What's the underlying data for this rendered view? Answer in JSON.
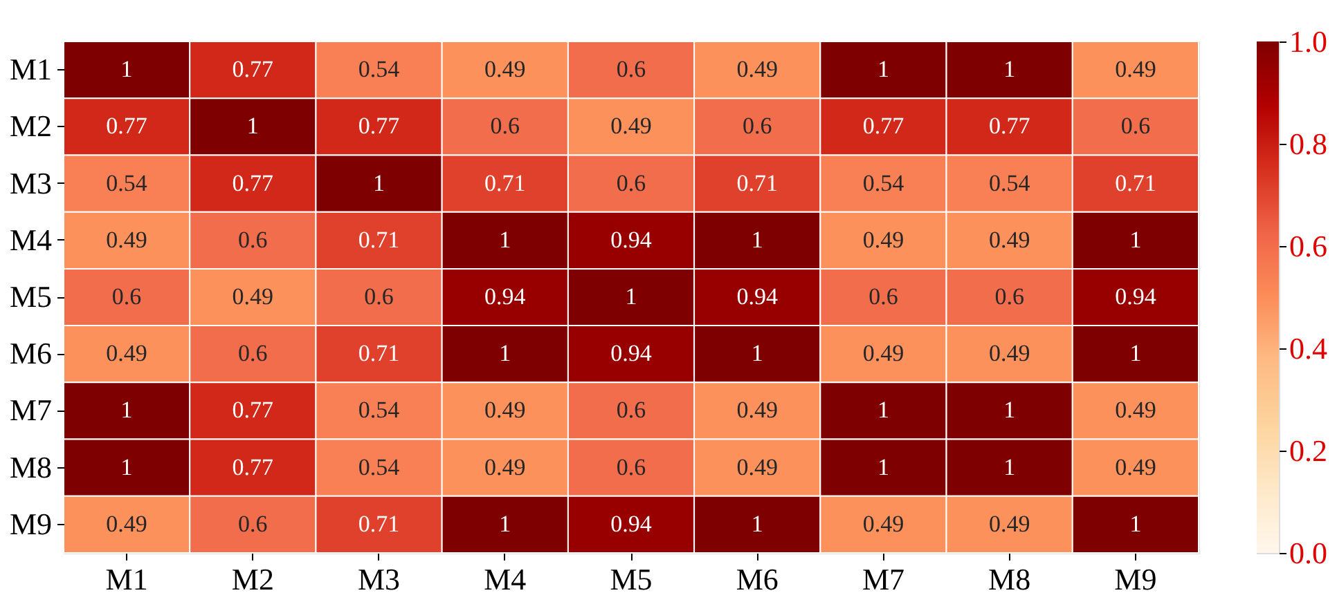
{
  "chart_data": {
    "type": "heatmap",
    "categories": [
      "M1",
      "M2",
      "M3",
      "M4",
      "M5",
      "M6",
      "M7",
      "M8",
      "M9"
    ],
    "y_categories": [
      "M1",
      "M2",
      "M3",
      "M4",
      "M5",
      "M6",
      "M7",
      "M8",
      "M9"
    ],
    "cells": [
      [
        1,
        0.77,
        0.54,
        0.49,
        0.6,
        0.49,
        1,
        1,
        0.49
      ],
      [
        0.77,
        1,
        0.77,
        0.6,
        0.49,
        0.6,
        0.77,
        0.77,
        0.6
      ],
      [
        0.54,
        0.77,
        1,
        0.71,
        0.6,
        0.71,
        0.54,
        0.54,
        0.71
      ],
      [
        0.49,
        0.6,
        0.71,
        1,
        0.94,
        1,
        0.49,
        0.49,
        1
      ],
      [
        0.6,
        0.49,
        0.6,
        0.94,
        1,
        0.94,
        0.6,
        0.6,
        0.94
      ],
      [
        0.49,
        0.6,
        0.71,
        1,
        0.94,
        1,
        0.49,
        0.49,
        1
      ],
      [
        1,
        0.77,
        0.54,
        0.49,
        0.6,
        0.49,
        1,
        1,
        0.49
      ],
      [
        1,
        0.77,
        0.54,
        0.49,
        0.6,
        0.49,
        1,
        1,
        0.49
      ],
      [
        0.49,
        0.6,
        0.71,
        1,
        0.94,
        1,
        0.49,
        0.49,
        1
      ]
    ],
    "data_labels": true,
    "clim": [
      0,
      1
    ],
    "cticks": [
      {
        "value": 0,
        "label": "0.0"
      },
      {
        "value": 0.2,
        "label": "0.2"
      },
      {
        "value": 0.4,
        "label": "0.4"
      },
      {
        "value": 0.6,
        "label": "0.6"
      },
      {
        "value": 0.8,
        "label": "0.8"
      },
      {
        "value": 1,
        "label": "1.0"
      }
    ]
  }
}
